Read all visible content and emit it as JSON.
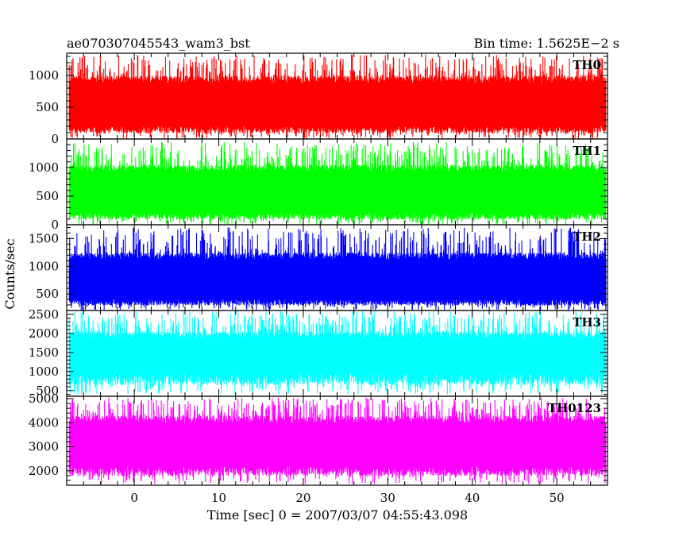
{
  "header": {
    "source_name": "ae070307045543_wam3_bst",
    "bin_time": "Bin time: 1.5625E−2 s"
  },
  "colors": {
    "axes": "#000000",
    "background": "#ffffff"
  },
  "chart_data": {
    "type": "line",
    "title": "ae070307045543_wam3_bst",
    "subtitle": "Bin time: 1.5625E−2 s",
    "xlabel": "Time [sec] 0 = 2007/03/07 04:55:43.098",
    "ylabel": "Counts/sec",
    "xlim": [
      -8,
      56
    ],
    "xticks": [
      0,
      10,
      20,
      30,
      40,
      50
    ],
    "data_span": [
      -7.7,
      55.8
    ],
    "bin_time": 0.015625,
    "grid": false,
    "legend": "none",
    "panels": [
      {
        "name": "TH0",
        "color": "#ff0000",
        "ylim": [
          0,
          1350
        ],
        "yticks": [
          0,
          500,
          1000
        ],
        "typical_range": [
          150,
          1000
        ],
        "peak_range": [
          1000,
          1330
        ],
        "trough_range": [
          0,
          100
        ]
      },
      {
        "name": "TH1",
        "color": "#00ff00",
        "ylim": [
          0,
          1500
        ],
        "yticks": [
          0,
          500,
          1000
        ],
        "typical_range": [
          150,
          1050
        ],
        "peak_range": [
          1050,
          1450
        ],
        "trough_range": [
          0,
          100
        ]
      },
      {
        "name": "TH2",
        "color": "#0000ff",
        "ylim": [
          200,
          1750
        ],
        "yticks": [
          500,
          1000,
          1500
        ],
        "typical_range": [
          350,
          1250
        ],
        "peak_range": [
          1250,
          1700
        ],
        "trough_range": [
          200,
          330
        ]
      },
      {
        "name": "TH3",
        "color": "#00ffff",
        "ylim": [
          350,
          2600
        ],
        "yticks": [
          500,
          1000,
          1500,
          2000,
          2500
        ],
        "typical_range": [
          800,
          2050
        ],
        "peak_range": [
          2050,
          2600
        ],
        "trough_range": [
          400,
          700
        ]
      },
      {
        "name": "TH0123",
        "color": "#ff00ff",
        "ylim": [
          1400,
          5100
        ],
        "yticks": [
          2000,
          3000,
          4000,
          5000
        ],
        "typical_range": [
          2000,
          4300
        ],
        "peak_range": [
          4300,
          5050
        ],
        "trough_range": [
          1450,
          1900
        ]
      }
    ]
  }
}
